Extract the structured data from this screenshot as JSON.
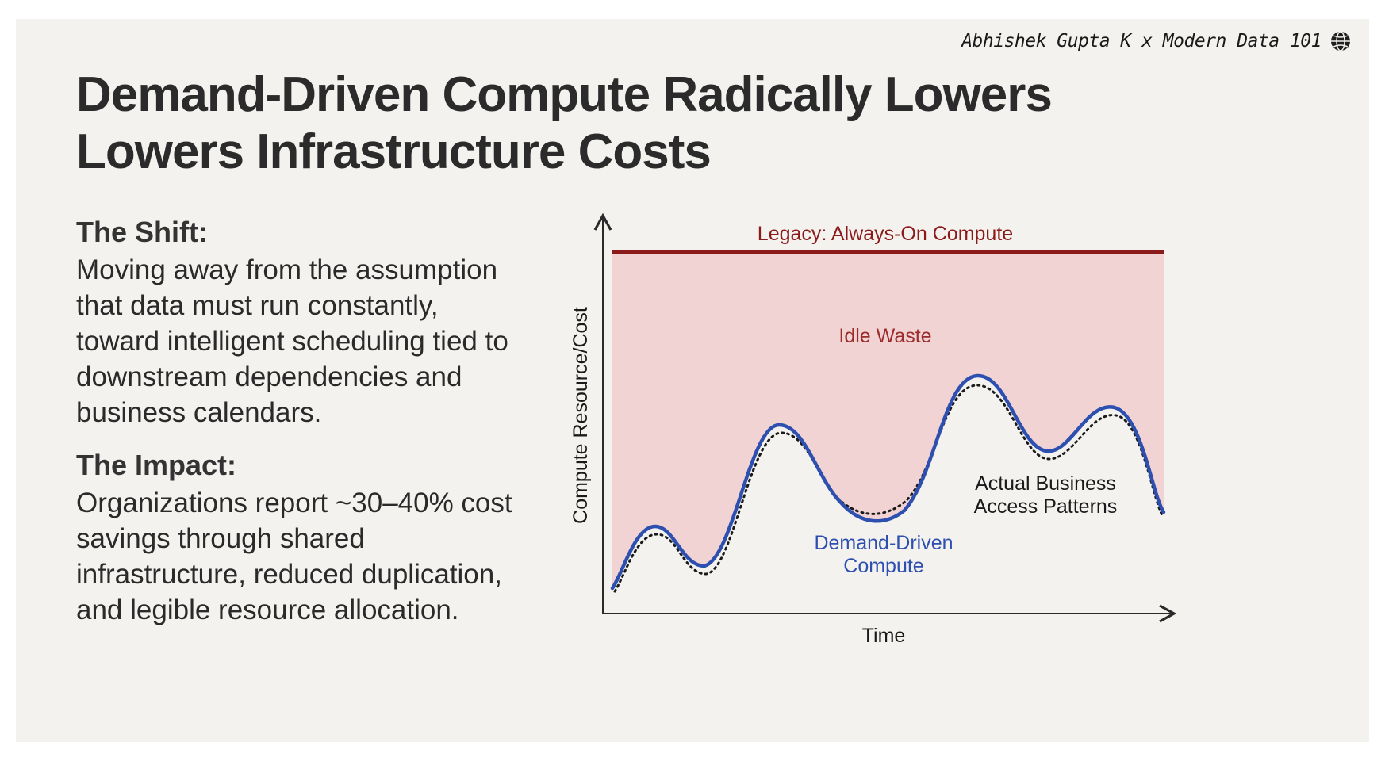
{
  "attribution": {
    "text": "Abhishek Gupta K x Modern Data 101",
    "icon": "globe-icon"
  },
  "title": {
    "line1": "Demand-Driven Compute Radically Lowers",
    "line2": "Lowers Infrastructure Costs"
  },
  "shift": {
    "heading": "The Shift:",
    "lines": [
      "Moving away from the assumption",
      "that data must run constantly,",
      "toward intelligent scheduling tied to",
      "downstream dependencies and",
      "business calendars."
    ]
  },
  "impact": {
    "heading": "The Impact:",
    "lines": [
      "Organizations report ~30–40% cost",
      "savings through shared",
      "infrastructure, reduced duplication,",
      "and legible resource allocation."
    ]
  },
  "chart": {
    "y_axis_label": "Compute Resource/Cost",
    "x_axis_label": "Time",
    "legacy_label": "Legacy: Always-On Compute",
    "idle_label": "Idle Waste",
    "demand_label_1": "Demand-Driven",
    "demand_label_2": "Compute",
    "actual_label_1": "Actual Business",
    "actual_label_2": "Access Patterns"
  },
  "colors": {
    "legacy_line": "#8b1a1a",
    "idle_fill": "#f2d3d3",
    "idle_text": "#9b2c2c",
    "demand_curve": "#2d4fb0",
    "actual_curve": "#1a1a1a",
    "axis": "#2a2a2a"
  }
}
